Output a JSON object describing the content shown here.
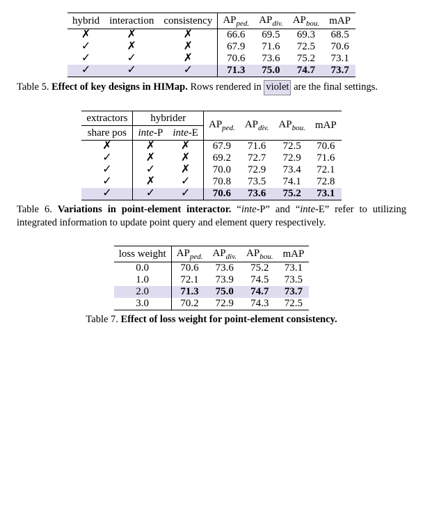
{
  "marks": {
    "yes": "✓",
    "no": "✗"
  },
  "colors": {
    "highlight": "#e0dcf0",
    "rule": "#000000",
    "text": "#000000",
    "bg": "#ffffff"
  },
  "fonts": {
    "family": "Times New Roman",
    "body_size_pt": 11,
    "caption_size_pt": 10.5,
    "sub_size_pt": 8
  },
  "metric_headers": {
    "ap_ped_pre": "AP",
    "ap_ped_sub": "ped.",
    "ap_div_pre": "AP",
    "ap_div_sub": "div.",
    "ap_bou_pre": "AP",
    "ap_bou_sub": "bou.",
    "map": "mAP"
  },
  "table5": {
    "columns": {
      "c1": "hybrid",
      "c2": "interaction",
      "c3": "consistency"
    },
    "rows": [
      {
        "hybrid": "no",
        "interaction": "no",
        "consistency": "no",
        "ap_ped": "66.6",
        "ap_div": "69.5",
        "ap_bou": "69.3",
        "map": "68.5",
        "hl": false,
        "bold": false
      },
      {
        "hybrid": "yes",
        "interaction": "no",
        "consistency": "no",
        "ap_ped": "67.9",
        "ap_div": "71.6",
        "ap_bou": "72.5",
        "map": "70.6",
        "hl": false,
        "bold": false
      },
      {
        "hybrid": "yes",
        "interaction": "yes",
        "consistency": "no",
        "ap_ped": "70.6",
        "ap_div": "73.6",
        "ap_bou": "75.2",
        "map": "73.1",
        "hl": false,
        "bold": false
      },
      {
        "hybrid": "yes",
        "interaction": "yes",
        "consistency": "yes",
        "ap_ped": "71.3",
        "ap_div": "75.0",
        "ap_bou": "74.7",
        "map": "73.7",
        "hl": true,
        "bold": true
      }
    ],
    "caption_label": "Table 5.",
    "caption_bold": "Effect of key designs in HIMap.",
    "caption_tail_1": " Rows rendered in ",
    "caption_violet": "violet",
    "caption_tail_2": " are the final settings."
  },
  "table6": {
    "head": {
      "extractors": "extractors",
      "hybrider": "hybrider",
      "share_pos": "share pos",
      "inte_p_pre": "inte",
      "inte_p_suf": "-P",
      "inte_e_pre": "inte",
      "inte_e_suf": "-E"
    },
    "rows": [
      {
        "share": "no",
        "inteP": "no",
        "inteE": "no",
        "ap_ped": "67.9",
        "ap_div": "71.6",
        "ap_bou": "72.5",
        "map": "70.6",
        "hl": false,
        "bold": false
      },
      {
        "share": "yes",
        "inteP": "no",
        "inteE": "no",
        "ap_ped": "69.2",
        "ap_div": "72.7",
        "ap_bou": "72.9",
        "map": "71.6",
        "hl": false,
        "bold": false
      },
      {
        "share": "yes",
        "inteP": "yes",
        "inteE": "no",
        "ap_ped": "70.0",
        "ap_div": "72.9",
        "ap_bou": "73.4",
        "map": "72.1",
        "hl": false,
        "bold": false
      },
      {
        "share": "yes",
        "inteP": "no",
        "inteE": "yes",
        "ap_ped": "70.8",
        "ap_div": "73.5",
        "ap_bou": "74.1",
        "map": "72.8",
        "hl": false,
        "bold": false
      },
      {
        "share": "yes",
        "inteP": "yes",
        "inteE": "yes",
        "ap_ped": "70.6",
        "ap_div": "73.6",
        "ap_bou": "75.2",
        "map": "73.1",
        "hl": true,
        "bold": true
      }
    ],
    "caption_label": "Table 6.",
    "caption_bold": "Variations in point-element interactor.",
    "caption_tail": " “",
    "caption_inteP_i": "inte",
    "caption_inteP_r": "-P",
    "caption_mid": "” and “",
    "caption_inteE_i": "inte",
    "caption_inteE_r": "-E",
    "caption_end": "” refer to utilizing integrated information to update point query and element query respectively."
  },
  "table7": {
    "col1": "loss weight",
    "rows": [
      {
        "w": "0.0",
        "ap_ped": "70.6",
        "ap_div": "73.6",
        "ap_bou": "75.2",
        "map": "73.1",
        "hl": false,
        "bold": false
      },
      {
        "w": "1.0",
        "ap_ped": "72.1",
        "ap_div": "73.9",
        "ap_bou": "74.5",
        "map": "73.5",
        "hl": false,
        "bold": false
      },
      {
        "w": "2.0",
        "ap_ped": "71.3",
        "ap_div": "75.0",
        "ap_bou": "74.7",
        "map": "73.7",
        "hl": true,
        "bold": true
      },
      {
        "w": "3.0",
        "ap_ped": "70.2",
        "ap_div": "72.9",
        "ap_bou": "74.3",
        "map": "72.5",
        "hl": false,
        "bold": false
      }
    ],
    "caption_label": "Table 7.",
    "caption_bold": "Effect of loss weight for point-element consistency."
  }
}
